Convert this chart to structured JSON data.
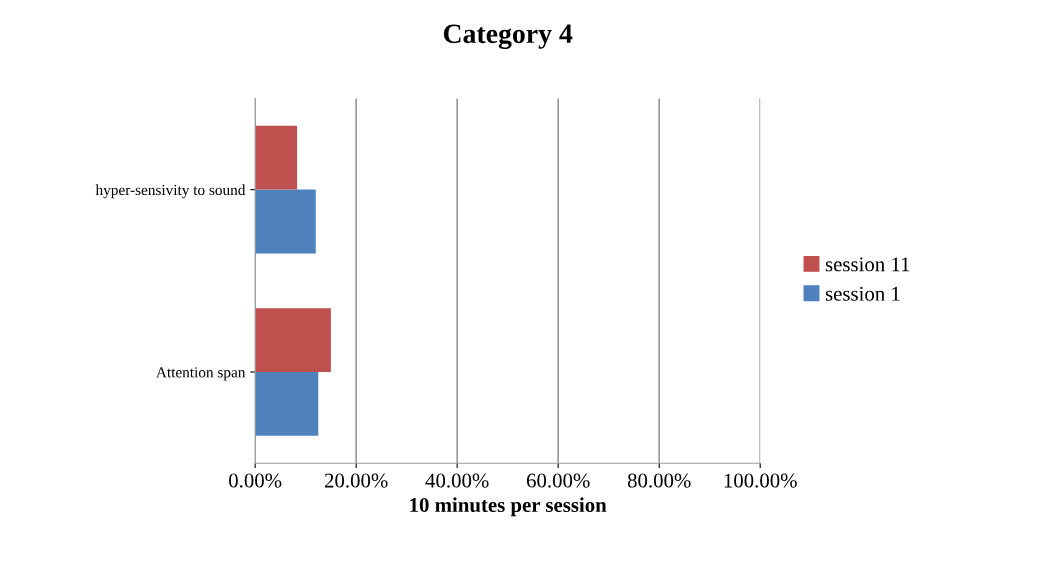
{
  "chart_data": {
    "type": "bar",
    "orientation": "horizontal",
    "title": "Category 4",
    "xlabel": "10 minutes per session",
    "categories": [
      "hyper-sensivity to sound",
      "Attention span"
    ],
    "series": [
      {
        "name": "session 1",
        "color": "#4f81bd",
        "values": [
          12,
          12.5
        ]
      },
      {
        "name": "session 11",
        "color": "#c0504d",
        "values": [
          8.3,
          15
        ]
      }
    ],
    "xlim": [
      0,
      100
    ],
    "xticks": [
      {
        "value": 0,
        "label": "0.00%"
      },
      {
        "value": 20,
        "label": "20.00%"
      },
      {
        "value": 40,
        "label": "40.00%"
      },
      {
        "value": 60,
        "label": "60.00%"
      },
      {
        "value": 80,
        "label": "80.00%"
      },
      {
        "value": 100,
        "label": "100.00%"
      }
    ],
    "grid": "x",
    "legend": "right"
  }
}
